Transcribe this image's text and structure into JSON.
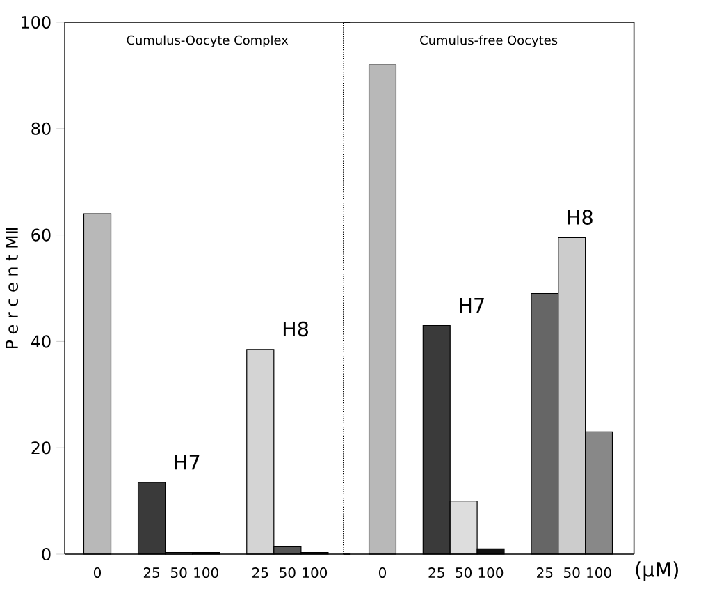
{
  "chart_data": [
    {
      "type": "bar",
      "title": "Cumulus-Oocyte Complex",
      "ylabel": "P e r c e n t   MⅡ",
      "categories": [
        "0",
        null,
        "25",
        "50",
        "100",
        null,
        "25",
        "50",
        "100"
      ],
      "values": [
        64,
        null,
        13.5,
        0.3,
        0.3,
        null,
        38.5,
        1.5,
        0.3
      ],
      "colors": [
        "#b8b8b8",
        null,
        "#3a3a3a",
        "#dddddd",
        "#111111",
        null,
        "#d4d4d4",
        "#555555",
        "#222222"
      ],
      "annotations": [
        "H7",
        "H8"
      ],
      "ylim": [
        0,
        100
      ],
      "yticks": [
        0,
        20,
        40,
        60,
        80,
        100
      ]
    },
    {
      "type": "bar",
      "title": "Cumulus-free Oocytes",
      "xlabel": "(μM)",
      "categories": [
        "0",
        null,
        "25",
        "50",
        "100",
        null,
        "25",
        "50",
        "100"
      ],
      "values": [
        92,
        null,
        43,
        10,
        1,
        null,
        49,
        59.5,
        23
      ],
      "colors": [
        "#b8b8b8",
        null,
        "#3a3a3a",
        "#dddddd",
        "#111111",
        null,
        "#666666",
        "#cccccc",
        "#888888"
      ],
      "annotations": [
        "H7",
        "H8"
      ],
      "ylim": [
        0,
        100
      ],
      "tick_labels": "x"
    }
  ]
}
